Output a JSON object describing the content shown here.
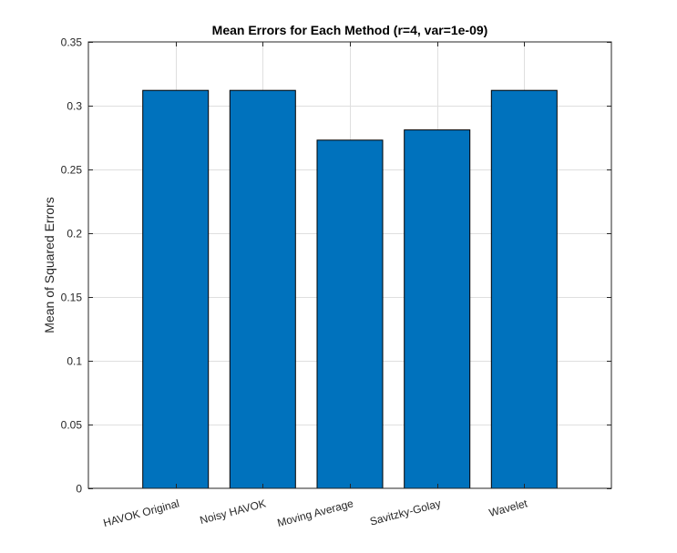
{
  "chart_data": {
    "type": "bar",
    "title": "Mean Errors for Each Method (r=4, var=1e-09)",
    "xlabel": "",
    "ylabel": "Mean of Squared Errors",
    "categories": [
      "HAVOK Original",
      "Noisy HAVOK",
      "Moving Average",
      "Savitzky-Golay",
      "Wavelet"
    ],
    "values": [
      0.312,
      0.312,
      0.273,
      0.281,
      0.312
    ],
    "ylim": [
      0,
      0.35
    ],
    "yticks": [
      0,
      0.05,
      0.1,
      0.15,
      0.2,
      0.25,
      0.3,
      0.35
    ],
    "ytick_labels": [
      "0",
      "0.05",
      "0.1",
      "0.15",
      "0.2",
      "0.25",
      "0.3",
      "0.35"
    ],
    "grid": true,
    "x_tick_rotation_deg": 15,
    "bar_color": "#0072BD",
    "bar_edge_color": "#000000",
    "grid_color": "#dfdfdf",
    "axis_color": "#262626"
  }
}
